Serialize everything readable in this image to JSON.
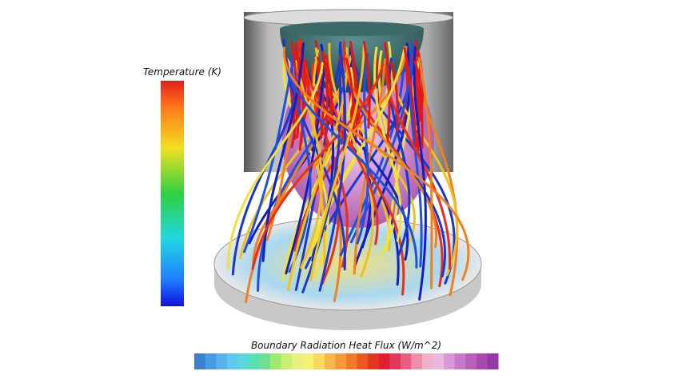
{
  "temperature_legend": {
    "title": "Temperature (K)"
  },
  "heat_flux_legend": {
    "title": "Boundary Radiation Heat Flux (W/m^2)"
  }
}
